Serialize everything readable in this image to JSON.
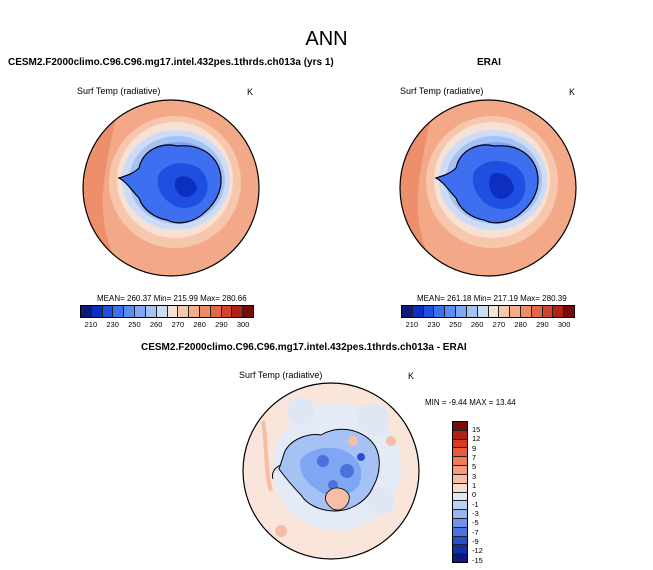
{
  "figure": {
    "title": "ANN"
  },
  "panels": {
    "model": {
      "title": "CESM2.F2000climo.C96.C96.mg17.intel.432pes.1thrds.ch013a (yrs 1)",
      "variable": "Surf Temp (radiative)",
      "units": "K",
      "stats": "MEAN= 260.37  Min= 215.99  Max= 280.66",
      "mean": 260.37,
      "min": 215.99,
      "max": 280.66
    },
    "obs": {
      "title": "ERAI",
      "variable": "Surf Temp (radiative)",
      "units": "K",
      "stats": "MEAN= 261.18  Min= 217.19  Max= 280.39",
      "mean": 261.18,
      "min": 217.19,
      "max": 280.39
    },
    "diff": {
      "title": "CESM2.F2000climo.C96.C96.mg17.intel.432pes.1thrds.ch013a - ERAI",
      "variable": "Surf Temp (radiative)",
      "units": "K",
      "stats": "MIN = -9.44 MAX = 13.44",
      "min": -9.44,
      "max": 13.44
    }
  },
  "colorbar_abs": {
    "ticks": [
      "210",
      "230",
      "250",
      "260",
      "270",
      "280",
      "290",
      "300"
    ],
    "colors": [
      "#0a1a7a",
      "#0d2fc0",
      "#1f4fe0",
      "#3d6ff0",
      "#5a8cf2",
      "#7ea6f3",
      "#a6c2f5",
      "#cddcf6",
      "#f3e2d6",
      "#f6c8ae",
      "#f4ac8a",
      "#ee8c6a",
      "#e2674a",
      "#cf4330",
      "#b02218",
      "#7a0a08"
    ]
  },
  "colorbar_diff": {
    "ticks": [
      "15",
      "12",
      "9",
      "7",
      "5",
      "3",
      "1",
      "0",
      "-1",
      "-3",
      "-5",
      "-7",
      "-9",
      "-12",
      "-15"
    ],
    "colors": [
      "#7a0a08",
      "#b02218",
      "#d8391f",
      "#ea5a3c",
      "#f27a5a",
      "#f59c7e",
      "#f6bea4",
      "#f9dccc",
      "#dfe6f4",
      "#bcd0f2",
      "#97b5ef",
      "#6f94e9",
      "#4a72dc",
      "#2a4fc8",
      "#1030a6",
      "#0a1a7a"
    ]
  }
}
